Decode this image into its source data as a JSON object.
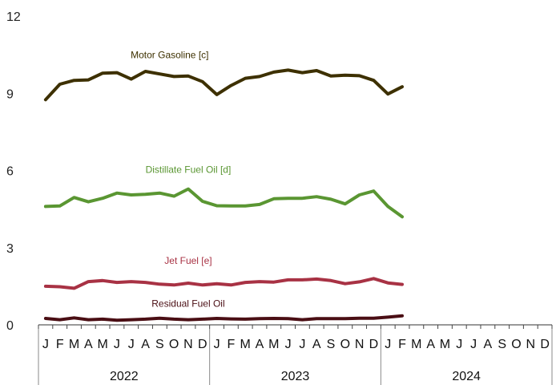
{
  "chart_data": {
    "type": "line",
    "title": "",
    "xlabel": "",
    "ylabel": "",
    "ylim": [
      0,
      12
    ],
    "y_ticks": [
      "0",
      "3",
      "6",
      "9",
      "12"
    ],
    "month_labels": [
      "J",
      "F",
      "M",
      "A",
      "M",
      "J",
      "J",
      "A",
      "S",
      "O",
      "N",
      "D",
      "J",
      "F",
      "M",
      "A",
      "M",
      "J",
      "J",
      "A",
      "S",
      "O",
      "N",
      "D",
      "J",
      "F",
      "M",
      "A",
      "M",
      "J",
      "J",
      "A",
      "S",
      "O",
      "N",
      "D"
    ],
    "year_labels": [
      "2022",
      "2023",
      "2024"
    ],
    "grid": false,
    "series": [
      {
        "name": "Motor Gasoline [c]",
        "color": "#3d3000",
        "values": [
          8.75,
          9.35,
          9.5,
          9.52,
          9.78,
          9.8,
          9.55,
          9.85,
          9.75,
          9.65,
          9.67,
          9.45,
          8.95,
          9.3,
          9.58,
          9.65,
          9.82,
          9.9,
          9.8,
          9.88,
          9.67,
          9.7,
          9.68,
          9.5,
          8.97,
          9.25
        ]
      },
      {
        "name": "Distillate Fuel Oil [d]",
        "color": "#5a9632",
        "values": [
          4.6,
          4.62,
          4.95,
          4.78,
          4.92,
          5.12,
          5.05,
          5.07,
          5.12,
          5.0,
          5.28,
          4.8,
          4.63,
          4.62,
          4.62,
          4.68,
          4.9,
          4.92,
          4.92,
          4.98,
          4.88,
          4.7,
          5.05,
          5.2,
          4.6,
          4.2
        ]
      },
      {
        "name": "Jet Fuel [e]",
        "color": "#a83244",
        "values": [
          1.5,
          1.48,
          1.42,
          1.68,
          1.72,
          1.65,
          1.68,
          1.65,
          1.58,
          1.55,
          1.62,
          1.55,
          1.6,
          1.55,
          1.65,
          1.68,
          1.66,
          1.75,
          1.75,
          1.78,
          1.72,
          1.6,
          1.67,
          1.8,
          1.63,
          1.57
        ]
      },
      {
        "name": "Residual Fuel Oil",
        "color": "#4a0e14",
        "values": [
          0.25,
          0.2,
          0.27,
          0.2,
          0.22,
          0.18,
          0.2,
          0.22,
          0.26,
          0.22,
          0.2,
          0.22,
          0.25,
          0.23,
          0.22,
          0.24,
          0.25,
          0.24,
          0.2,
          0.24,
          0.24,
          0.24,
          0.26,
          0.26,
          0.3,
          0.35
        ]
      }
    ]
  }
}
